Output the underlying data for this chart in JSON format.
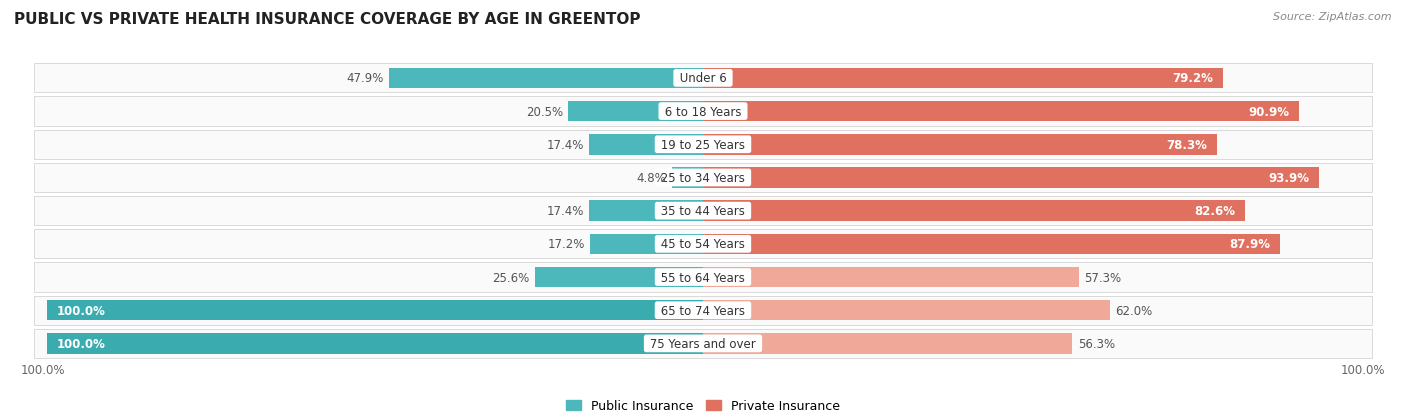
{
  "title": "PUBLIC VS PRIVATE HEALTH INSURANCE COVERAGE BY AGE IN GREENTOP",
  "source": "Source: ZipAtlas.com",
  "categories": [
    "Under 6",
    "6 to 18 Years",
    "19 to 25 Years",
    "25 to 34 Years",
    "35 to 44 Years",
    "45 to 54 Years",
    "55 to 64 Years",
    "65 to 74 Years",
    "75 Years and over"
  ],
  "public_values": [
    47.9,
    20.5,
    17.4,
    4.8,
    17.4,
    17.2,
    25.6,
    100.0,
    100.0
  ],
  "private_values": [
    79.2,
    90.9,
    78.3,
    93.9,
    82.6,
    87.9,
    57.3,
    62.0,
    56.3
  ],
  "public_color": "#4db8bc",
  "private_color_strong": "#e07060",
  "private_color_light": "#f0a898",
  "public_color_full": "#3aacb0",
  "bg_color": "#f2f2f2",
  "row_bg_color": "#e8e8e8",
  "row_fill_color": "#fafafa",
  "max_val": 100.0,
  "legend_public": "Public Insurance",
  "legend_private": "Private Insurance",
  "title_fontsize": 11,
  "label_fontsize": 8.5,
  "category_fontsize": 8.5,
  "tick_fontsize": 8.5,
  "source_fontsize": 8
}
